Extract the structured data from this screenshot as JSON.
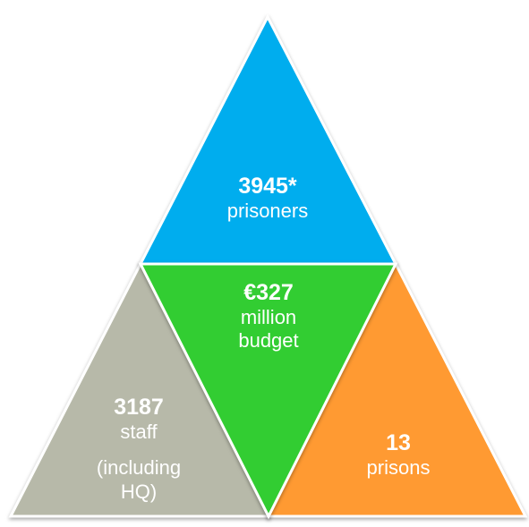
{
  "segments": {
    "top": {
      "value": "3945*",
      "line1": "prisoners",
      "color": "#00adee"
    },
    "middle": {
      "value": "€327",
      "line1": "million",
      "line2": "budget",
      "color": "#32cd32"
    },
    "left": {
      "value": "3187",
      "line1": "staff",
      "line2": "(including",
      "line3": "HQ)",
      "color": "#b7b9a9"
    },
    "right": {
      "value": "13",
      "line1": "prisons",
      "color": "#ff9a30"
    }
  }
}
